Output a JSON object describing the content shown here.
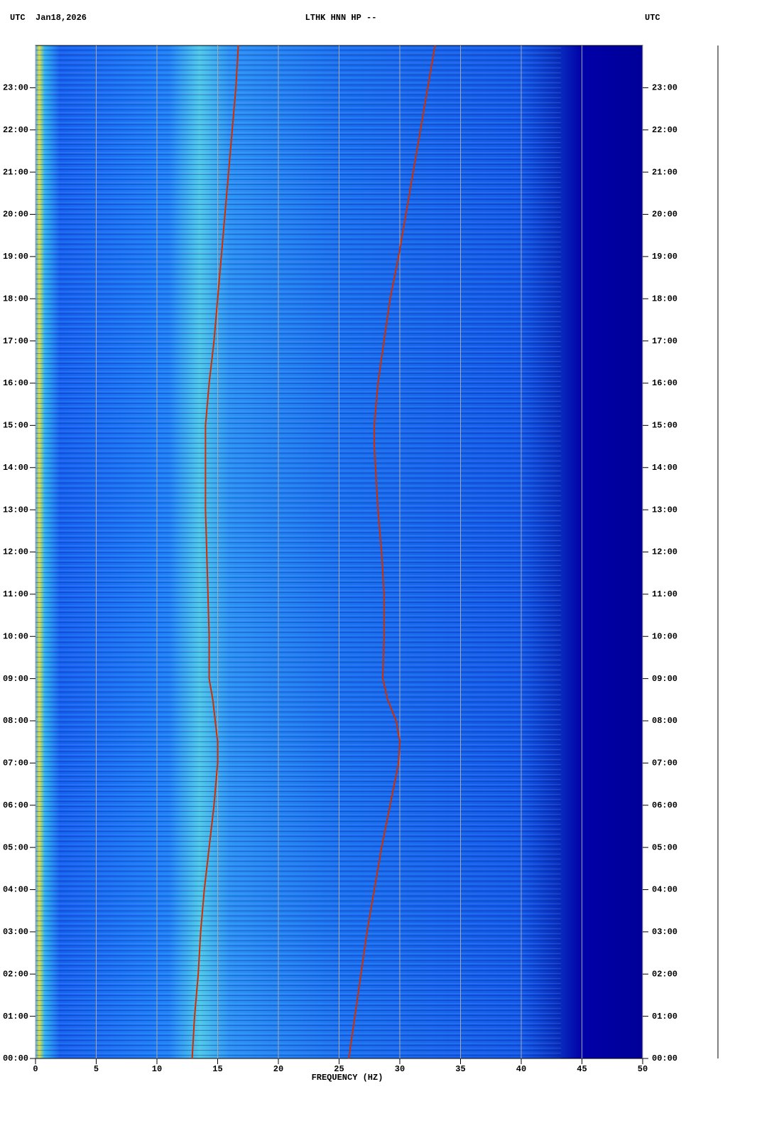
{
  "chart_data": {
    "type": "spectrogram",
    "title": "LTHK HNN HP --",
    "timezone": "UTC",
    "date": "Jan18,2026",
    "xlabel": "FREQUENCY (HZ)",
    "xlim": [
      0,
      50
    ],
    "xticks": [
      0,
      5,
      10,
      15,
      20,
      25,
      30,
      35,
      40,
      45,
      50
    ],
    "ylim": [
      0,
      24
    ],
    "yticks": [
      {
        "value": 0,
        "label": "00:00"
      },
      {
        "value": 1,
        "label": "01:00"
      },
      {
        "value": 2,
        "label": "02:00"
      },
      {
        "value": 3,
        "label": "03:00"
      },
      {
        "value": 4,
        "label": "04:00"
      },
      {
        "value": 5,
        "label": "05:00"
      },
      {
        "value": 6,
        "label": "06:00"
      },
      {
        "value": 7,
        "label": "07:00"
      },
      {
        "value": 8,
        "label": "08:00"
      },
      {
        "value": 9,
        "label": "09:00"
      },
      {
        "value": 10,
        "label": "10:00"
      },
      {
        "value": 11,
        "label": "11:00"
      },
      {
        "value": 12,
        "label": "12:00"
      },
      {
        "value": 13,
        "label": "13:00"
      },
      {
        "value": 14,
        "label": "14:00"
      },
      {
        "value": 15,
        "label": "15:00"
      },
      {
        "value": 16,
        "label": "16:00"
      },
      {
        "value": 17,
        "label": "17:00"
      },
      {
        "value": 18,
        "label": "18:00"
      },
      {
        "value": 19,
        "label": "19:00"
      },
      {
        "value": 20,
        "label": "20:00"
      },
      {
        "value": 21,
        "label": "21:00"
      },
      {
        "value": 22,
        "label": "22:00"
      },
      {
        "value": 23,
        "label": "23:00"
      }
    ],
    "grid": true,
    "lines": [
      {
        "color": "#d03000",
        "x": [
          12.9,
          13.1,
          13.4,
          13.6,
          13.9,
          14.3,
          14.7,
          15.0,
          15.0,
          14.8,
          14.6,
          14.3,
          14.3,
          14.2,
          14.1,
          14.0,
          14.0,
          14.0,
          14.3,
          14.7,
          15.0,
          15.3,
          15.6,
          15.9,
          16.2,
          16.5,
          16.7
        ],
        "y": [
          0,
          1,
          2,
          3,
          4,
          5,
          6,
          7,
          7.5,
          8,
          8.5,
          9,
          10,
          11,
          12,
          13,
          14,
          15,
          16,
          17,
          18,
          19,
          20,
          21,
          22,
          23,
          24
        ]
      },
      {
        "color": "#d03000",
        "x": [
          25.8,
          26.3,
          26.8,
          27.3,
          27.9,
          28.5,
          29.2,
          29.9,
          30.0,
          29.7,
          29.0,
          28.6,
          28.7,
          28.7,
          28.5,
          28.2,
          28.0,
          27.9,
          27.9,
          28.2,
          28.7,
          29.2,
          29.9,
          30.5,
          31.1,
          31.7,
          32.3,
          32.9
        ],
        "y": [
          0,
          1,
          2,
          3,
          4,
          5,
          6,
          7,
          7.5,
          8,
          8.5,
          9,
          10,
          11,
          12,
          13,
          14,
          14.5,
          15,
          16,
          17,
          18,
          19,
          20,
          21,
          22,
          23,
          24
        ]
      }
    ]
  }
}
